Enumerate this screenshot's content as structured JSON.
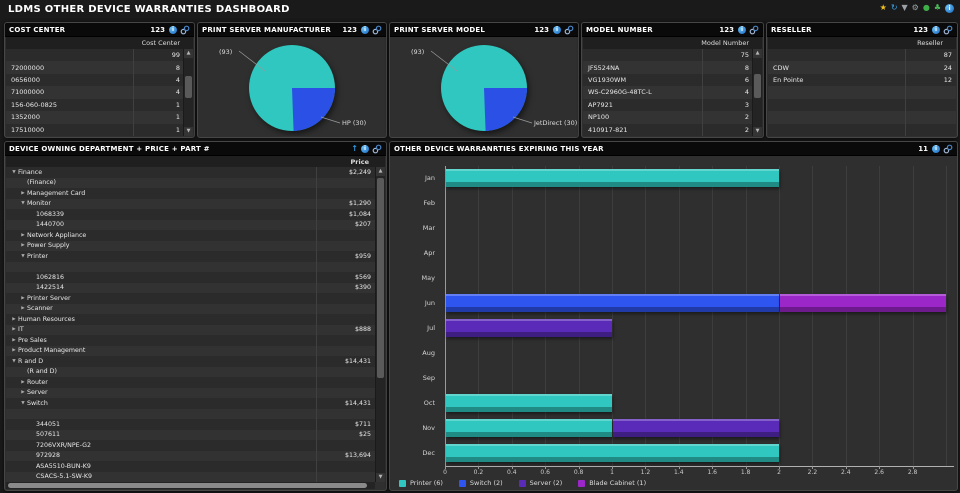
{
  "icons": {
    "info": "i",
    "sort_up": "↑",
    "expanded": "▼",
    "collapsed": "▶",
    "scroll_up": "▲",
    "scroll_down": "▼"
  },
  "header": {
    "title": "LDMS OTHER DEVICE WARRANTIES DASHBOARD",
    "toolbar": [
      {
        "name": "star-icon",
        "glyph": "★",
        "color": "#f2c21f"
      },
      {
        "name": "refresh-icon",
        "glyph": "↻",
        "color": "#3aa5e8"
      },
      {
        "name": "filter-icon",
        "glyph": "▼",
        "color": "#9aa0a6"
      },
      {
        "name": "wrench-icon",
        "glyph": "⚙",
        "color": "#9aa0a6"
      },
      {
        "name": "globe-icon",
        "glyph": "●",
        "color": "#3fae49"
      },
      {
        "name": "users-icon",
        "glyph": "♣",
        "color": "#4db858"
      },
      {
        "name": "info-icon",
        "glyph": "i",
        "color": "#2f9ae0"
      }
    ]
  },
  "panels": {
    "cost_center": {
      "title": "COST CENTER",
      "badge": "123",
      "column": "Cost Center",
      "rows": [
        {
          "name": "",
          "value": "99"
        },
        {
          "name": "72000000",
          "value": "8"
        },
        {
          "name": "0656000",
          "value": "4"
        },
        {
          "name": "71000000",
          "value": "4"
        },
        {
          "name": "156-060-0825",
          "value": "1"
        },
        {
          "name": "1352000",
          "value": "1"
        },
        {
          "name": "17510000",
          "value": "1"
        }
      ]
    },
    "print_server_manufacturer": {
      "title": "PRINT SERVER MANUFACTURER",
      "badge": "123"
    },
    "print_server_model": {
      "title": "PRINT SERVER MODEL",
      "badge": "123"
    },
    "model_number": {
      "title": "MODEL NUMBER",
      "badge": "123",
      "column": "Model Number",
      "rows": [
        {
          "name": "",
          "value": "75"
        },
        {
          "name": "JFS524NA",
          "value": "8"
        },
        {
          "name": "VG1930WM",
          "value": "6"
        },
        {
          "name": "WS-C2960G-48TC-L",
          "value": "4"
        },
        {
          "name": "AP7921",
          "value": "3"
        },
        {
          "name": "NP100",
          "value": "2"
        },
        {
          "name": "410917-821",
          "value": "2"
        }
      ]
    },
    "reseller": {
      "title": "RESELLER",
      "badge": "123",
      "column": "Reseller",
      "rows": [
        {
          "name": "",
          "value": "87"
        },
        {
          "name": "CDW",
          "value": "24"
        },
        {
          "name": "En Pointe",
          "value": "12"
        },
        {
          "name": "",
          "value": ""
        },
        {
          "name": "",
          "value": ""
        },
        {
          "name": "",
          "value": ""
        },
        {
          "name": "",
          "value": ""
        }
      ]
    },
    "device_owning": {
      "title": "DEVICE OWNING DEPARTMENT + PRICE + PART #",
      "column": "Price",
      "rows": [
        {
          "label": "Finance",
          "price": "$2,249",
          "level": 0,
          "state": "expanded"
        },
        {
          "label": "(Finance)",
          "price": "",
          "level": 1,
          "state": "none"
        },
        {
          "label": "Management Card",
          "price": "",
          "level": 1,
          "state": "collapsed"
        },
        {
          "label": "Monitor",
          "price": "$1,290",
          "level": 1,
          "state": "expanded"
        },
        {
          "label": "1068339",
          "price": "$1,084",
          "level": 2,
          "state": "none"
        },
        {
          "label": "1440700",
          "price": "$207",
          "level": 2,
          "state": "none"
        },
        {
          "label": "Network Appliance",
          "price": "",
          "level": 1,
          "state": "collapsed"
        },
        {
          "label": "Power Supply",
          "price": "",
          "level": 1,
          "state": "collapsed"
        },
        {
          "label": "Printer",
          "price": "$959",
          "level": 1,
          "state": "expanded"
        },
        {
          "label": "",
          "price": "",
          "level": 2,
          "state": "none"
        },
        {
          "label": "1062816",
          "price": "$569",
          "level": 2,
          "state": "none"
        },
        {
          "label": "1422514",
          "price": "$390",
          "level": 2,
          "state": "none"
        },
        {
          "label": "Printer Server",
          "price": "",
          "level": 1,
          "state": "collapsed"
        },
        {
          "label": "Scanner",
          "price": "",
          "level": 1,
          "state": "collapsed"
        },
        {
          "label": "Human Resources",
          "price": "",
          "level": 0,
          "state": "collapsed"
        },
        {
          "label": "IT",
          "price": "$888",
          "level": 0,
          "state": "collapsed"
        },
        {
          "label": "Pre Sales",
          "price": "",
          "level": 0,
          "state": "collapsed"
        },
        {
          "label": "Product Management",
          "price": "",
          "level": 0,
          "state": "collapsed"
        },
        {
          "label": "R and D",
          "price": "$14,431",
          "level": 0,
          "state": "expanded"
        },
        {
          "label": "(R and D)",
          "price": "",
          "level": 1,
          "state": "none"
        },
        {
          "label": "Router",
          "price": "",
          "level": 1,
          "state": "collapsed"
        },
        {
          "label": "Server",
          "price": "",
          "level": 1,
          "state": "collapsed"
        },
        {
          "label": "Switch",
          "price": "$14,431",
          "level": 1,
          "state": "expanded"
        },
        {
          "label": "",
          "price": "",
          "level": 2,
          "state": "none"
        },
        {
          "label": "344051",
          "price": "$711",
          "level": 2,
          "state": "none"
        },
        {
          "label": "507611",
          "price": "$25",
          "level": 2,
          "state": "none"
        },
        {
          "label": "7206VXR/NPE-G2",
          "price": "",
          "level": 2,
          "state": "none"
        },
        {
          "label": "972928",
          "price": "$13,694",
          "level": 2,
          "state": "none"
        },
        {
          "label": "ASA5510-BUN-K9",
          "price": "",
          "level": 2,
          "state": "none"
        },
        {
          "label": "CSACS-5.1-SW-K9",
          "price": "",
          "level": 2,
          "state": "none"
        }
      ]
    },
    "warranties": {
      "title": "OTHER DEVICE WARRANRTIES EXPIRING THIS YEAR",
      "badge": "11"
    }
  },
  "chart_data": [
    {
      "id": "print_server_manufacturer",
      "type": "pie",
      "title": "PRINT SERVER MANUFACTURER",
      "total": 123,
      "slices": [
        {
          "label": "",
          "count": 93,
          "display": "(93)",
          "color": "#2fc7bf"
        },
        {
          "label": "HP",
          "count": 30,
          "display": "HP (30)",
          "color": "#2b50e6"
        }
      ]
    },
    {
      "id": "print_server_model",
      "type": "pie",
      "title": "PRINT SERVER MODEL",
      "total": 123,
      "slices": [
        {
          "label": "",
          "count": 93,
          "display": "(93)",
          "color": "#2fc7bf"
        },
        {
          "label": "JetDirect",
          "count": 30,
          "display": "JetDirect (30)",
          "color": "#2b50e6"
        }
      ]
    },
    {
      "id": "warranties",
      "type": "bar",
      "orientation": "horizontal",
      "title": "OTHER DEVICE WARRANRTIES EXPIRING THIS YEAR",
      "categories": [
        "Jan",
        "Feb",
        "Mar",
        "Apr",
        "May",
        "Jun",
        "Jul",
        "Aug",
        "Sep",
        "Oct",
        "Nov",
        "Dec"
      ],
      "series": [
        {
          "name": "Printer (6)",
          "color": "#2fc7bf",
          "values": [
            2,
            0,
            0,
            0,
            0,
            0,
            0,
            0,
            0,
            1,
            1,
            2
          ]
        },
        {
          "name": "Switch (2)",
          "color": "#2e55f0",
          "values": [
            0,
            0,
            0,
            0,
            0,
            2,
            0,
            0,
            0,
            0,
            0,
            0
          ]
        },
        {
          "name": "Server (2)",
          "color": "#5a2bb8",
          "values": [
            0,
            0,
            0,
            0,
            0,
            0,
            1,
            0,
            0,
            0,
            1,
            0
          ]
        },
        {
          "name": "Blade Cabinet (1)",
          "color": "#9c27c9",
          "values": [
            0,
            0,
            0,
            0,
            0,
            1,
            0,
            0,
            0,
            0,
            0,
            0
          ]
        }
      ],
      "xlim": [
        0,
        3
      ],
      "xtick_labels": [
        "0",
        "0.2",
        "0.4",
        "0.6",
        "0.8",
        "1",
        "1.2",
        "1.4",
        "1.6",
        "1.8",
        "2",
        "2.2",
        "2.4",
        "2.6",
        "2.8"
      ],
      "grid": true,
      "legend_position": "bottom"
    }
  ]
}
